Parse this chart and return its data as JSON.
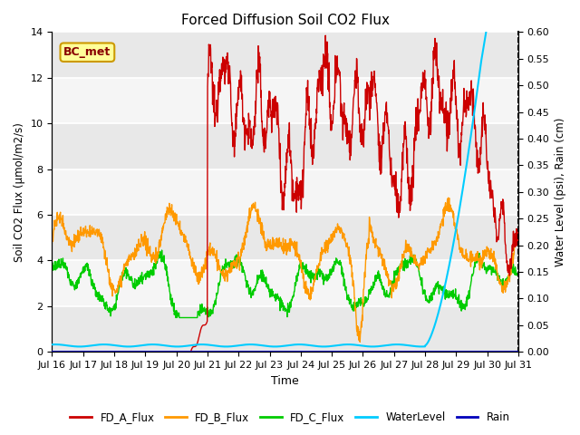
{
  "title": "Forced Diffusion Soil CO2 Flux",
  "ylabel_left": "Soil CO2 Flux (μmol/m2/s)",
  "ylabel_right": "Water Level (psi), Rain (cm)",
  "xlabel": "Time",
  "annotation": "BC_met",
  "xlim": [
    16,
    31
  ],
  "ylim_left": [
    0,
    14
  ],
  "ylim_right": [
    0.0,
    0.6
  ],
  "xtick_positions": [
    16,
    17,
    18,
    19,
    20,
    21,
    22,
    23,
    24,
    25,
    26,
    27,
    28,
    29,
    30,
    31
  ],
  "xtick_labels": [
    "Jul 16",
    "Jul 17",
    "Jul 18",
    "Jul 19",
    "Jul 20",
    "Jul 21",
    "Jul 22",
    "Jul 23",
    "Jul 24",
    "Jul 25",
    "Jul 26",
    "Jul 27",
    "Jul 28",
    "Jul 29",
    "Jul 30",
    "Jul 31"
  ],
  "yticks_left": [
    0,
    2,
    4,
    6,
    8,
    10,
    12,
    14
  ],
  "yticks_right": [
    0.0,
    0.05,
    0.1,
    0.15,
    0.2,
    0.25,
    0.3,
    0.35,
    0.4,
    0.45,
    0.5,
    0.55,
    0.6
  ],
  "colors": {
    "FD_A_Flux": "#cc0000",
    "FD_B_Flux": "#ff9900",
    "FD_C_Flux": "#00cc00",
    "WaterLevel": "#00ccff",
    "Rain": "#0000bb"
  },
  "bg_dark": "#e8e8e8",
  "bg_light": "#f5f5f5",
  "grid_color": "#ffffff",
  "annotation_bg": "#ffff99",
  "annotation_border": "#cc9900",
  "annotation_text_color": "#880000"
}
